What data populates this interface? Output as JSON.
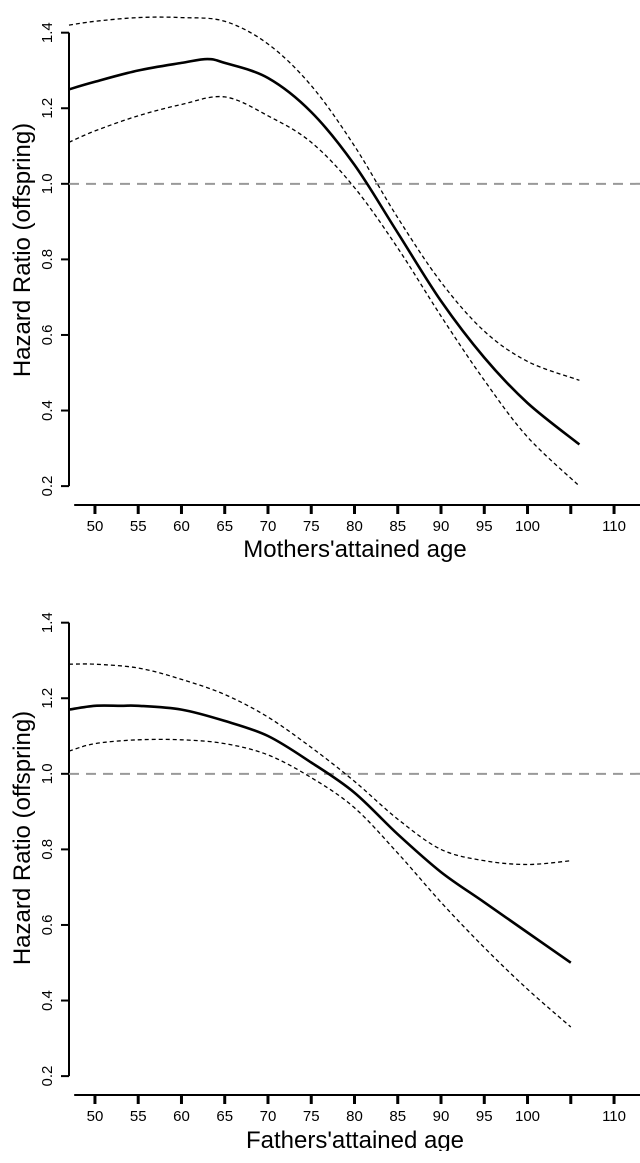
{
  "chart_data": [
    {
      "type": "line",
      "title": "",
      "xlabel": "Mothers'attained age",
      "ylabel": "Hazard Ratio (offspring)",
      "xlim": [
        47,
        113
      ],
      "ylim": [
        0.15,
        1.46
      ],
      "x_ticks": [
        50,
        55,
        60,
        65,
        70,
        75,
        80,
        85,
        90,
        95,
        100,
        110
      ],
      "x_ticks_unlabeled": [
        105
      ],
      "x_tick_labels": [
        "50",
        "55",
        "60",
        "65",
        "70",
        "75",
        "80",
        "85",
        "90",
        "95",
        "100",
        "110"
      ],
      "y_ticks": [
        0.2,
        0.4,
        0.6,
        0.8,
        1.0,
        1.2,
        1.4
      ],
      "y_tick_labels": [
        "0.2",
        "0.4",
        "0.6",
        "0.8",
        "1.0",
        "1.2",
        "1.4"
      ],
      "reference_line": 1.0,
      "grid": false,
      "series": [
        {
          "role": "estimate",
          "style": "solid",
          "x": [
            47,
            50,
            55,
            60,
            63,
            65,
            70,
            75,
            80,
            85,
            90,
            95,
            100,
            106
          ],
          "y": [
            1.25,
            1.27,
            1.3,
            1.32,
            1.33,
            1.32,
            1.28,
            1.19,
            1.05,
            0.87,
            0.69,
            0.54,
            0.42,
            0.31
          ]
        },
        {
          "role": "upper",
          "style": "dashed",
          "x": [
            47,
            50,
            55,
            60,
            65,
            70,
            75,
            80,
            85,
            90,
            95,
            100,
            106
          ],
          "y": [
            1.42,
            1.43,
            1.44,
            1.44,
            1.43,
            1.37,
            1.26,
            1.1,
            0.91,
            0.74,
            0.61,
            0.53,
            0.48
          ]
        },
        {
          "role": "lower",
          "style": "dashed",
          "x": [
            47,
            50,
            55,
            60,
            65,
            70,
            75,
            80,
            85,
            90,
            95,
            100,
            106
          ],
          "y": [
            1.11,
            1.14,
            1.18,
            1.21,
            1.23,
            1.18,
            1.11,
            0.99,
            0.83,
            0.65,
            0.48,
            0.33,
            0.2
          ]
        }
      ]
    },
    {
      "type": "line",
      "title": "",
      "xlabel": "Fathers'attained age",
      "ylabel": "Hazard Ratio (offspring)",
      "xlim": [
        47,
        113
      ],
      "ylim": [
        0.15,
        1.46
      ],
      "x_ticks": [
        50,
        55,
        60,
        65,
        70,
        75,
        80,
        85,
        90,
        95,
        100,
        110
      ],
      "x_ticks_unlabeled": [
        105
      ],
      "x_tick_labels": [
        "50",
        "55",
        "60",
        "65",
        "70",
        "75",
        "80",
        "85",
        "90",
        "95",
        "100",
        "110"
      ],
      "y_ticks": [
        0.2,
        0.4,
        0.6,
        0.8,
        1.0,
        1.2,
        1.4
      ],
      "y_tick_labels": [
        "0.2",
        "0.4",
        "0.6",
        "0.8",
        "1.0",
        "1.2",
        "1.4"
      ],
      "reference_line": 1.0,
      "grid": false,
      "series": [
        {
          "role": "estimate",
          "style": "solid",
          "x": [
            47,
            50,
            53,
            55,
            60,
            65,
            70,
            75,
            80,
            85,
            90,
            95,
            100,
            105
          ],
          "y": [
            1.17,
            1.18,
            1.18,
            1.18,
            1.17,
            1.14,
            1.1,
            1.03,
            0.95,
            0.84,
            0.74,
            0.66,
            0.58,
            0.5
          ]
        },
        {
          "role": "upper",
          "style": "dashed",
          "x": [
            47,
            50,
            55,
            60,
            65,
            70,
            75,
            80,
            85,
            90,
            95,
            100,
            105
          ],
          "y": [
            1.29,
            1.29,
            1.28,
            1.25,
            1.21,
            1.15,
            1.07,
            0.98,
            0.88,
            0.8,
            0.77,
            0.76,
            0.77
          ]
        },
        {
          "role": "lower",
          "style": "dashed",
          "x": [
            47,
            50,
            55,
            60,
            65,
            70,
            75,
            80,
            85,
            90,
            95,
            100,
            105
          ],
          "y": [
            1.06,
            1.08,
            1.09,
            1.09,
            1.08,
            1.05,
            0.99,
            0.91,
            0.79,
            0.66,
            0.54,
            0.43,
            0.33
          ]
        }
      ]
    }
  ]
}
